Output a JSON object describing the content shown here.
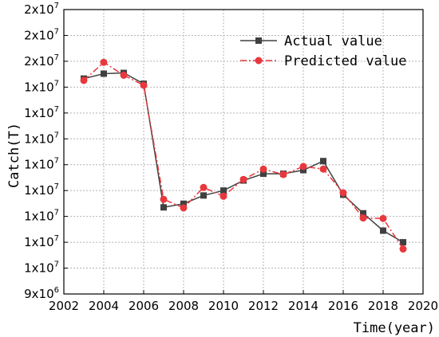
{
  "chart_data": {
    "type": "line",
    "title": "",
    "xlabel": "Time(year)",
    "ylabel": "Catch(T)",
    "xlim": [
      2002,
      2020
    ],
    "ylim": [
      9000000,
      20000000
    ],
    "x_ticks": [
      2002,
      2004,
      2006,
      2008,
      2010,
      2012,
      2014,
      2016,
      2018,
      2020
    ],
    "y_ticks": [
      {
        "value": 9000000,
        "base": "9x10",
        "exp": "6"
      },
      {
        "value": 10000000,
        "base": "1x10",
        "exp": "7"
      },
      {
        "value": 11000000,
        "base": "1x10",
        "exp": "7"
      },
      {
        "value": 12000000,
        "base": "1x10",
        "exp": "7"
      },
      {
        "value": 13000000,
        "base": "1x10",
        "exp": "7"
      },
      {
        "value": 14000000,
        "base": "1x10",
        "exp": "7"
      },
      {
        "value": 15000000,
        "base": "1x10",
        "exp": "7"
      },
      {
        "value": 16000000,
        "base": "1x10",
        "exp": "7"
      },
      {
        "value": 17000000,
        "base": "1x10",
        "exp": "7"
      },
      {
        "value": 18000000,
        "base": "2x10",
        "exp": "7"
      },
      {
        "value": 19000000,
        "base": "2x10",
        "exp": "7"
      },
      {
        "value": 20000000,
        "base": "2x10",
        "exp": "7"
      }
    ],
    "grid": true,
    "legend_position": "top-right",
    "x": [
      2003,
      2004,
      2005,
      2006,
      2007,
      2008,
      2009,
      2010,
      2011,
      2012,
      2013,
      2014,
      2015,
      2016,
      2017,
      2018,
      2019
    ],
    "series": [
      {
        "name": "Actual value",
        "color": "#404040",
        "marker": "square",
        "line": "solid",
        "values": [
          17330000,
          17520000,
          17550000,
          17130000,
          12350000,
          12490000,
          12810000,
          13000000,
          13390000,
          13650000,
          13650000,
          13790000,
          14140000,
          12840000,
          12120000,
          11450000,
          11000000
        ]
      },
      {
        "name": "Predicted value",
        "color": "#e8383d",
        "marker": "circle",
        "line": "dashdot",
        "values": [
          17260000,
          17960000,
          17460000,
          17070000,
          12660000,
          12330000,
          13120000,
          12780000,
          13430000,
          13830000,
          13620000,
          13930000,
          13830000,
          12910000,
          11940000,
          11920000,
          10740000
        ]
      }
    ]
  }
}
